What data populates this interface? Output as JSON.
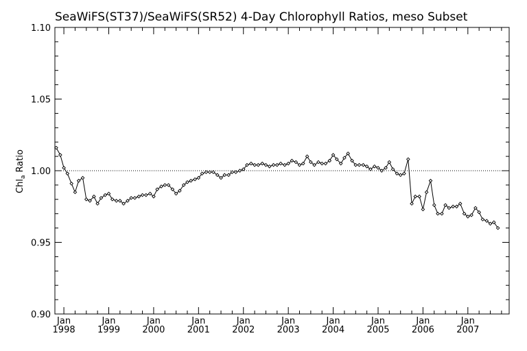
{
  "chart_data": {
    "type": "line",
    "title": "SeaWiFS(ST37)/SeaWiFS(SR52) 4-Day Chlorophyll Ratios, meso Subset",
    "ylabel_main": "Chl",
    "ylabel_sub": "a",
    "ylabel_tail": " Ratio",
    "xlabel": "",
    "ylim": [
      0.9,
      1.1
    ],
    "yticks": [
      {
        "value": 0.9,
        "label": "0.90"
      },
      {
        "value": 0.95,
        "label": "0.95"
      },
      {
        "value": 1.0,
        "label": "1.00"
      },
      {
        "value": 1.05,
        "label": "1.05"
      },
      {
        "value": 1.1,
        "label": "1.10"
      }
    ],
    "xlim": [
      1997.8,
      2007.92
    ],
    "xticks": [
      {
        "value": 1998.0,
        "month": "Jan",
        "year": "1998"
      },
      {
        "value": 1999.0,
        "month": "Jan",
        "year": "1999"
      },
      {
        "value": 2000.0,
        "month": "Jan",
        "year": "2000"
      },
      {
        "value": 2001.0,
        "month": "Jan",
        "year": "2001"
      },
      {
        "value": 2002.0,
        "month": "Jan",
        "year": "2002"
      },
      {
        "value": 2003.0,
        "month": "Jan",
        "year": "2003"
      },
      {
        "value": 2004.0,
        "month": "Jan",
        "year": "2004"
      },
      {
        "value": 2005.0,
        "month": "Jan",
        "year": "2005"
      },
      {
        "value": 2006.0,
        "month": "Jan",
        "year": "2006"
      },
      {
        "value": 2007.0,
        "month": "Jan",
        "year": "2007"
      }
    ],
    "reference_line": 1.0,
    "series": [
      {
        "points": [
          [
            1997.83,
            1.016
          ],
          [
            1997.92,
            1.011
          ],
          [
            1998.0,
            1.002
          ],
          [
            1998.08,
            0.998
          ],
          [
            1998.17,
            0.991
          ],
          [
            1998.25,
            0.985
          ],
          [
            1998.33,
            0.993
          ],
          [
            1998.42,
            0.995
          ],
          [
            1998.5,
            0.98
          ],
          [
            1998.58,
            0.979
          ],
          [
            1998.67,
            0.982
          ],
          [
            1998.75,
            0.977
          ],
          [
            1998.83,
            0.981
          ],
          [
            1998.92,
            0.983
          ],
          [
            1999.0,
            0.984
          ],
          [
            1999.08,
            0.98
          ],
          [
            1999.17,
            0.979
          ],
          [
            1999.25,
            0.979
          ],
          [
            1999.33,
            0.977
          ],
          [
            1999.42,
            0.979
          ],
          [
            1999.5,
            0.981
          ],
          [
            1999.58,
            0.981
          ],
          [
            1999.67,
            0.982
          ],
          [
            1999.75,
            0.983
          ],
          [
            1999.83,
            0.983
          ],
          [
            1999.92,
            0.984
          ],
          [
            2000.0,
            0.982
          ],
          [
            2000.08,
            0.987
          ],
          [
            2000.17,
            0.989
          ],
          [
            2000.25,
            0.99
          ],
          [
            2000.33,
            0.99
          ],
          [
            2000.42,
            0.987
          ],
          [
            2000.5,
            0.984
          ],
          [
            2000.58,
            0.986
          ],
          [
            2000.67,
            0.99
          ],
          [
            2000.75,
            0.992
          ],
          [
            2000.83,
            0.993
          ],
          [
            2000.92,
            0.994
          ],
          [
            2001.0,
            0.995
          ],
          [
            2001.08,
            0.998
          ],
          [
            2001.17,
            0.999
          ],
          [
            2001.25,
            0.999
          ],
          [
            2001.33,
            0.999
          ],
          [
            2001.42,
            0.997
          ],
          [
            2001.5,
            0.995
          ],
          [
            2001.58,
            0.997
          ],
          [
            2001.67,
            0.997
          ],
          [
            2001.75,
            0.999
          ],
          [
            2001.83,
            0.999
          ],
          [
            2001.92,
            1.0
          ],
          [
            2002.0,
            1.001
          ],
          [
            2002.08,
            1.004
          ],
          [
            2002.17,
            1.005
          ],
          [
            2002.25,
            1.004
          ],
          [
            2002.33,
            1.004
          ],
          [
            2002.42,
            1.005
          ],
          [
            2002.5,
            1.004
          ],
          [
            2002.58,
            1.003
          ],
          [
            2002.67,
            1.004
          ],
          [
            2002.75,
            1.004
          ],
          [
            2002.83,
            1.005
          ],
          [
            2002.92,
            1.004
          ],
          [
            2003.0,
            1.005
          ],
          [
            2003.08,
            1.007
          ],
          [
            2003.17,
            1.006
          ],
          [
            2003.25,
            1.004
          ],
          [
            2003.33,
            1.005
          ],
          [
            2003.42,
            1.01
          ],
          [
            2003.5,
            1.006
          ],
          [
            2003.58,
            1.004
          ],
          [
            2003.67,
            1.006
          ],
          [
            2003.75,
            1.005
          ],
          [
            2003.83,
            1.005
          ],
          [
            2003.92,
            1.007
          ],
          [
            2004.0,
            1.011
          ],
          [
            2004.08,
            1.008
          ],
          [
            2004.17,
            1.005
          ],
          [
            2004.25,
            1.009
          ],
          [
            2004.33,
            1.012
          ],
          [
            2004.42,
            1.007
          ],
          [
            2004.5,
            1.004
          ],
          [
            2004.58,
            1.004
          ],
          [
            2004.67,
            1.004
          ],
          [
            2004.75,
            1.003
          ],
          [
            2004.83,
            1.001
          ],
          [
            2004.92,
            1.003
          ],
          [
            2005.0,
            1.002
          ],
          [
            2005.08,
            1.0
          ],
          [
            2005.17,
            1.002
          ],
          [
            2005.25,
            1.006
          ],
          [
            2005.33,
            1.001
          ],
          [
            2005.42,
            0.998
          ],
          [
            2005.5,
            0.997
          ],
          [
            2005.58,
            0.998
          ],
          [
            2005.67,
            1.008
          ],
          [
            2005.75,
            0.977
          ],
          [
            2005.83,
            0.982
          ],
          [
            2005.92,
            0.982
          ],
          [
            2006.0,
            0.973
          ],
          [
            2006.08,
            0.985
          ],
          [
            2006.17,
            0.993
          ],
          [
            2006.25,
            0.976
          ],
          [
            2006.33,
            0.97
          ],
          [
            2006.42,
            0.97
          ],
          [
            2006.5,
            0.976
          ],
          [
            2006.58,
            0.974
          ],
          [
            2006.67,
            0.975
          ],
          [
            2006.75,
            0.975
          ],
          [
            2006.83,
            0.977
          ],
          [
            2006.92,
            0.97
          ],
          [
            2007.0,
            0.968
          ],
          [
            2007.08,
            0.969
          ],
          [
            2007.17,
            0.974
          ],
          [
            2007.25,
            0.971
          ],
          [
            2007.33,
            0.966
          ],
          [
            2007.42,
            0.965
          ],
          [
            2007.5,
            0.963
          ],
          [
            2007.58,
            0.964
          ],
          [
            2007.67,
            0.96
          ]
        ]
      }
    ],
    "grid": false,
    "line_color": "#000000",
    "marker": "diamond"
  }
}
